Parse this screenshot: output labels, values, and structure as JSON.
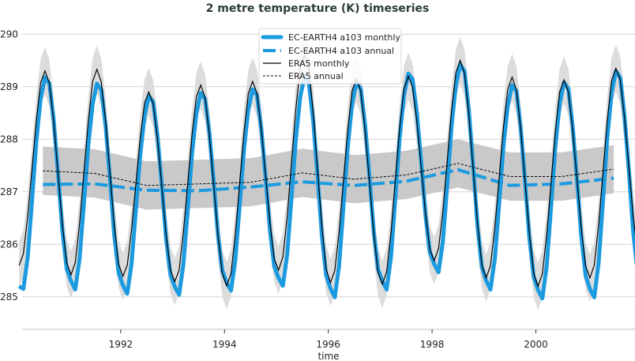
{
  "chart_data": {
    "type": "line",
    "title": "2 metre temperature (K) timeseries",
    "xlabel": "time",
    "ylabel": "",
    "xlim": [
      1990.1,
      2001.91
    ],
    "ylim": [
      284.38,
      290.5
    ],
    "x_ticks": [
      "1992",
      "1994",
      "1996",
      "1998",
      "2000"
    ],
    "y_ticks": [
      "285",
      "286",
      "287",
      "288",
      "289",
      "290"
    ],
    "grid": "horizontal",
    "legend_position": "top-center",
    "start_year": 1990,
    "colors": {
      "ec": "#1b9ae0",
      "era5": "#000000",
      "monthly_band": "#dcdcdc",
      "annual_band": "#c9c9c9",
      "title": "#2d3b3b"
    },
    "series": [
      {
        "name": "EC-EARTH4 a103 monthly",
        "frequency": "monthly",
        "values": [
          285.2,
          285.15,
          285.75,
          286.84,
          287.97,
          288.78,
          289.18,
          289.06,
          288.37,
          287.36,
          286.27,
          285.54,
          285.3,
          285.14,
          285.73,
          286.79,
          287.88,
          288.67,
          289.06,
          288.94,
          288.26,
          287.26,
          286.18,
          285.46,
          285.22,
          285.06,
          285.62,
          286.64,
          287.69,
          288.44,
          288.82,
          288.71,
          288.06,
          287.12,
          286.1,
          285.42,
          285.19,
          285.04,
          285.62,
          286.65,
          287.73,
          288.5,
          288.88,
          288.77,
          288.13,
          287.19,
          286.17,
          285.5,
          285.27,
          285.12,
          285.69,
          286.73,
          287.8,
          288.57,
          288.95,
          288.84,
          288.2,
          287.27,
          286.26,
          285.58,
          285.36,
          285.21,
          285.81,
          286.89,
          288.0,
          288.8,
          289.2,
          289.07,
          288.36,
          287.31,
          286.17,
          285.41,
          285.16,
          284.99,
          285.6,
          286.71,
          287.85,
          288.67,
          289.08,
          288.96,
          288.29,
          287.31,
          286.24,
          285.53,
          285.3,
          285.14,
          285.76,
          286.87,
          288.02,
          288.84,
          289.25,
          289.14,
          288.49,
          287.55,
          286.53,
          285.85,
          285.62,
          285.47,
          286.06,
          287.13,
          288.24,
          289.03,
          289.42,
          289.29,
          288.56,
          287.49,
          286.34,
          285.57,
          285.31,
          285.14,
          285.72,
          286.77,
          287.86,
          288.64,
          289.03,
          288.91,
          288.22,
          287.2,
          286.11,
          285.38,
          285.13,
          284.97,
          285.59,
          286.7,
          287.85,
          288.67,
          289.08,
          288.96,
          288.26,
          287.24,
          286.14,
          285.4,
          285.15,
          284.99,
          285.64,
          286.8,
          288.01,
          288.87,
          289.3,
          289.17,
          288.45,
          287.39,
          286.24,
          285.48
        ]
      },
      {
        "name": "EC-EARTH4 a103 annual",
        "frequency": "annual",
        "values": [
          287.14,
          287.15,
          287.03,
          287.02,
          287.09,
          287.19,
          287.12,
          287.2,
          287.42,
          287.12,
          287.15,
          287.26
        ]
      },
      {
        "name": "ERA5 monthly",
        "frequency": "monthly",
        "band_halfwidth": 0.45,
        "values": [
          285.6,
          285.82,
          286.53,
          287.45,
          288.38,
          289.08,
          289.3,
          289.07,
          288.33,
          287.36,
          286.39,
          285.65,
          285.42,
          285.65,
          286.4,
          287.38,
          288.35,
          289.1,
          289.33,
          289.09,
          288.35,
          287.36,
          286.38,
          285.63,
          285.39,
          285.6,
          286.27,
          287.15,
          288.02,
          288.69,
          288.9,
          288.68,
          288.0,
          287.1,
          286.19,
          285.51,
          285.29,
          285.51,
          286.23,
          287.16,
          288.1,
          288.81,
          289.03,
          288.8,
          288.08,
          287.12,
          286.17,
          285.44,
          285.21,
          285.44,
          286.18,
          287.16,
          288.13,
          288.87,
          289.1,
          288.88,
          288.2,
          287.31,
          286.41,
          285.73,
          285.51,
          285.76,
          286.53,
          287.56,
          288.58,
          289.35,
          289.6,
          289.34,
          288.52,
          287.44,
          286.35,
          285.53,
          285.27,
          285.5,
          286.24,
          287.21,
          288.18,
          288.92,
          289.15,
          288.92,
          288.17,
          287.2,
          286.22,
          285.47,
          285.24,
          285.48,
          286.23,
          287.22,
          288.21,
          288.96,
          289.2,
          288.99,
          288.32,
          287.45,
          286.57,
          285.9,
          285.69,
          285.92,
          286.64,
          287.6,
          288.55,
          289.27,
          289.5,
          289.25,
          288.47,
          287.43,
          286.4,
          285.61,
          285.36,
          285.59,
          286.32,
          287.27,
          288.23,
          288.95,
          289.18,
          288.94,
          288.19,
          287.19,
          286.2,
          285.44,
          285.2,
          285.44,
          286.18,
          287.17,
          288.15,
          288.9,
          289.13,
          288.9,
          288.19,
          287.25,
          286.3,
          285.59,
          285.36,
          285.6,
          286.36,
          287.36,
          288.35,
          289.11,
          289.35,
          289.13,
          288.41,
          287.48,
          286.54,
          285.83
        ]
      },
      {
        "name": "ERA5 annual",
        "frequency": "annual",
        "band_halfwidth": 0.46,
        "values": [
          287.4,
          287.35,
          287.12,
          287.15,
          287.18,
          287.36,
          287.24,
          287.32,
          287.54,
          287.29,
          287.29,
          287.43
        ]
      }
    ]
  }
}
